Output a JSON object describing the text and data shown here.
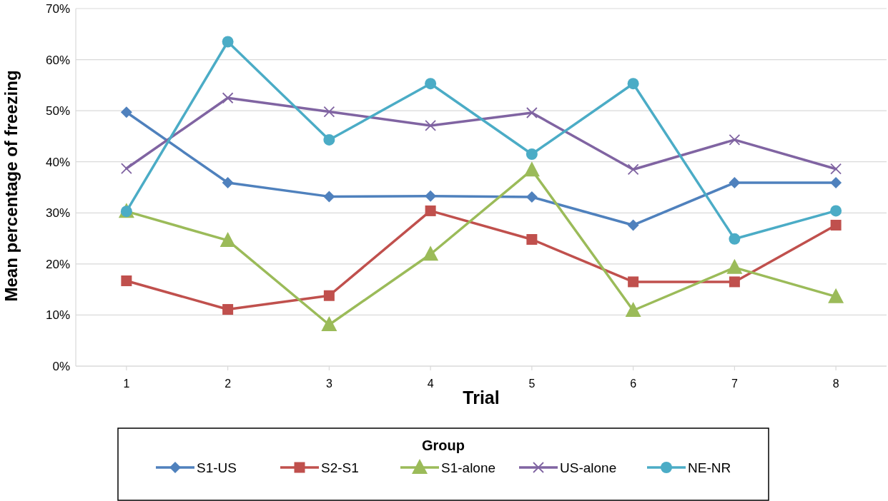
{
  "chart_data": {
    "type": "line",
    "xlabel": "Trial",
    "ylabel": "Mean percentage of freezing",
    "legend_title": "Group",
    "categories": [
      "1",
      "2",
      "3",
      "4",
      "5",
      "6",
      "7",
      "8"
    ],
    "series": [
      {
        "name": "S1-US",
        "color": "#4f81bd",
        "marker": "diamond",
        "values": [
          49.7,
          35.9,
          33.2,
          33.3,
          33.1,
          27.6,
          35.9,
          35.9
        ]
      },
      {
        "name": "S2-S1",
        "color": "#c0504d",
        "marker": "square",
        "values": [
          16.7,
          11.1,
          13.8,
          30.4,
          24.8,
          16.5,
          16.5,
          27.6
        ]
      },
      {
        "name": "S1-alone",
        "color": "#9bbb59",
        "marker": "triangle",
        "values": [
          30.3,
          24.6,
          8.1,
          21.9,
          38.4,
          10.9,
          19.3,
          13.6
        ]
      },
      {
        "name": "US-alone",
        "color": "#8064a2",
        "marker": "cross",
        "values": [
          38.7,
          52.5,
          49.8,
          47.1,
          49.6,
          38.5,
          44.3,
          38.6
        ]
      },
      {
        "name": "NE-NR",
        "color": "#4bacc6",
        "marker": "circle",
        "values": [
          30.3,
          63.5,
          44.3,
          55.3,
          41.5,
          55.3,
          24.9,
          30.4
        ]
      }
    ],
    "ylim": [
      0,
      70
    ],
    "yticks": [
      {
        "value": 0,
        "label": "0%"
      },
      {
        "value": 10,
        "label": "10%"
      },
      {
        "value": 20,
        "label": "20%"
      },
      {
        "value": 30,
        "label": "30%"
      },
      {
        "value": 40,
        "label": "40%"
      },
      {
        "value": 50,
        "label": "50%"
      },
      {
        "value": 60,
        "label": "60%"
      },
      {
        "value": 70,
        "label": "70%"
      }
    ],
    "grid": "y",
    "legend": "bottom",
    "line_style": "solid"
  }
}
